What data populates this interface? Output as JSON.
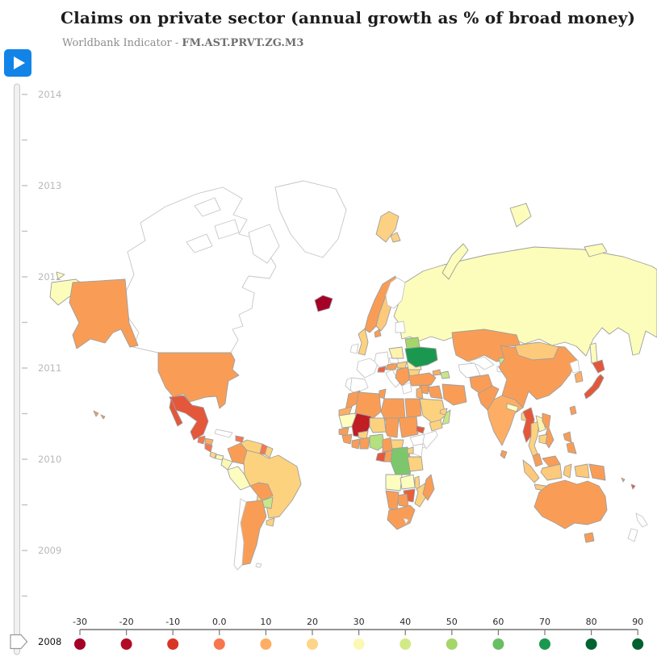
{
  "header": {
    "title": "Claims on private sector (annual growth as % of broad money)",
    "subtitle_prefix": "Worldbank Indicator - ",
    "indicator_code": "FM.AST.PRVT.ZG.M3"
  },
  "controls": {
    "play_button_color": "#1284e8"
  },
  "timeline": {
    "years": [
      "2014",
      "2013",
      "2012",
      "2011",
      "2010",
      "2009",
      "2008"
    ],
    "selected_year": "2008"
  },
  "legend": {
    "stops": [
      {
        "label": "-30",
        "color": "#a50026"
      },
      {
        "label": "-20",
        "color": "#b20b26"
      },
      {
        "label": "-10",
        "color": "#d93527"
      },
      {
        "label": "0.0",
        "color": "#f8764e"
      },
      {
        "label": "10",
        "color": "#fdae64"
      },
      {
        "label": "20",
        "color": "#fed487"
      },
      {
        "label": "30",
        "color": "#fbf8b4"
      },
      {
        "label": "40",
        "color": "#d2ea85"
      },
      {
        "label": "50",
        "color": "#a4d669"
      },
      {
        "label": "60",
        "color": "#68bf63"
      },
      {
        "label": "70",
        "color": "#1a9850"
      },
      {
        "label": "80",
        "color": "#01632f"
      },
      {
        "label": "90",
        "color": "#00602e"
      }
    ]
  },
  "map": {
    "no_data_color": "#ffffff",
    "border_color": "#9e9e9e",
    "no_data_border_color": "#c6c6c6",
    "countries": {
      "united_states": "#f99d56",
      "canada": null,
      "greenland": null,
      "mexico": "#e4573b",
      "guatemala": "#f8764e",
      "honduras": "#fdae64",
      "nicaragua": "#f8764e",
      "costa_rica": "#fed487",
      "panama": "#fbf8b4",
      "cuba": null,
      "dominican_republic": "#f8764e",
      "colombia": "#f99d56",
      "venezuela": "#fdd27f",
      "guyana": "#f8764e",
      "suriname": "#fdd27f",
      "ecuador": "#fbf8b4",
      "peru": "#fdfdc0",
      "brazil": "#fdd27f",
      "bolivia": "#f99d56",
      "paraguay": "#c8e788",
      "uruguay": "#fdd27f",
      "argentina": "#f99d56",
      "chile": null,
      "falkland_islands": null,
      "iceland": "#a50026",
      "united_kingdom": "#fdd27f",
      "ireland": null,
      "norway": "#f99d56",
      "svalbard": "#fcd183",
      "sweden": "#fdc97a",
      "finland": null,
      "denmark": "#f99d56",
      "france": null,
      "spain": null,
      "portugal": null,
      "germany": null,
      "italy": null,
      "switzerland": "#ed5f3c",
      "austria": "#f99d56",
      "czech_republic": null,
      "poland": "#fdf3ae",
      "hungary": "#fdd27f",
      "romania": "#fdf3ae",
      "bulgaria": "#fdd27f",
      "serbia_balkans": "#f99d56",
      "greece": null,
      "baltics": null,
      "belarus": "#a4d669",
      "ukraine": "#1a9850",
      "russia": "#fdfdbb",
      "turkey": "#f99d56",
      "morocco": "#f99d56",
      "western_sahara": "#fdae64",
      "algeria": "#f99d56",
      "tunisia": "#f99d56",
      "libya": "#f99d56",
      "egypt": "#f99d56",
      "mauritania": "#fdfdc0",
      "mali": "#c01d24",
      "niger": "#fdd27f",
      "chad": "#f99d56",
      "sudan": "#f99d56",
      "eritrea": "#e4573b",
      "ethiopia": null,
      "somalia": null,
      "kenya": null,
      "senegal": "#f99d56",
      "guinea": "#f99d56",
      "ivory_coast": "#f99d56",
      "burkina_faso": "#fdd27f",
      "ghana": "#f99d56",
      "nigeria": "#b5e07e",
      "cameroon": "#f99d56",
      "central_african_republic": "#fdd27f",
      "gabon": "#e4573b",
      "congo": "#f99d56",
      "dr_congo": "#7cc76c",
      "uganda": "#fdd27f",
      "tanzania": "#fdd27f",
      "angola": "#fdfdc0",
      "zambia": "#fdfdc0",
      "malawi": "#fdd27f",
      "mozambique": "#fdd27f",
      "zimbabwe": "#e8603c",
      "botswana": "#f99d56",
      "namibia": "#f99d56",
      "south_africa": "#f99d56",
      "lesotho": null,
      "madagascar": "#f99d56",
      "syria": "#f99d56",
      "iraq": "#f99d56",
      "jordan": "#fdae64",
      "saudi_arabia": "#fdd27f",
      "yemen": "#fdd27f",
      "oman": "#c8e788",
      "uae": "#fdd27f",
      "iran": "#f99d56",
      "georgia": "#fdae64",
      "azerbaijan": "#c8e788",
      "kazakhstan": "#f99d56",
      "uzbekistan": null,
      "turkmenistan": null,
      "kyrgyzstan": "#c8e788",
      "tajikistan": null,
      "afghanistan": "#f99d56",
      "pakistan": "#f99d56",
      "india": "#fdae64",
      "sri_lanka": "#f99d56",
      "nepal": "#fdfdc0",
      "bangladesh": "#fdd27f",
      "china": "#f99d56",
      "mongolia": "#fdc97a",
      "north_korea": null,
      "south_korea": "#fdae64",
      "japan": "#e4573b",
      "taiwan": "#f99d56",
      "myanmar": "#e4573b",
      "thailand": "#fdd27f",
      "laos": "#fdf3ae",
      "vietnam": "#f99d56",
      "cambodia": "#fdd27f",
      "malaysia": "#f99d56",
      "indonesia": "#fdc97a",
      "philippines": "#f99d56",
      "papua_new_guinea": "#f99d56",
      "fiji": "#e4573b",
      "vanuatu": "#f99d56",
      "australia": "#f99d56",
      "new_zealand": null
    }
  }
}
